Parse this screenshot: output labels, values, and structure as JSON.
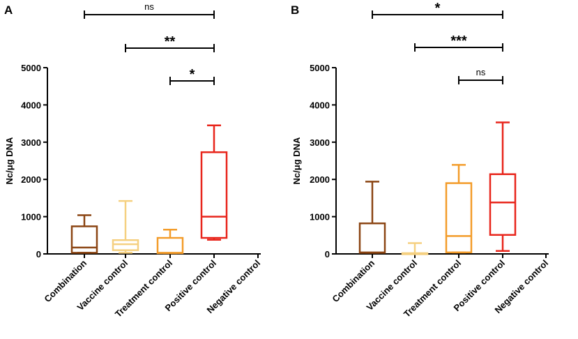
{
  "chart_data": [
    {
      "panel": "A",
      "type": "box",
      "ylabel": "Nc/μg DNA",
      "ylim": [
        0,
        5000
      ],
      "yticks": [
        0,
        1000,
        2000,
        3000,
        4000,
        5000
      ],
      "categories": [
        "Combination",
        "Vaccine control",
        "Treatment control",
        "Positive control",
        "Negative control"
      ],
      "colors": [
        "#8B4513",
        "#F5D080",
        "#F39C2A",
        "#E8251B",
        "#000000"
      ],
      "boxes": [
        {
          "min": 30,
          "q1": 30,
          "median": 170,
          "q3": 740,
          "max": 1040
        },
        {
          "min": 30,
          "q1": 100,
          "median": 260,
          "q3": 370,
          "max": 1420
        },
        {
          "min": 20,
          "q1": 20,
          "median": 30,
          "q3": 430,
          "max": 650
        },
        {
          "min": 380,
          "q1": 430,
          "median": 1000,
          "q3": 2730,
          "max": 3450
        },
        null
      ],
      "comparisons": [
        {
          "from": 0,
          "to": 3,
          "label": "ns"
        },
        {
          "from": 1,
          "to": 3,
          "label": "**"
        },
        {
          "from": 2,
          "to": 3,
          "label": "*"
        }
      ]
    },
    {
      "panel": "B",
      "type": "box",
      "ylabel": "Nc/μg DNA",
      "ylim": [
        0,
        5000
      ],
      "yticks": [
        0,
        1000,
        2000,
        3000,
        4000,
        5000
      ],
      "categories": [
        "Combination",
        "Vaccine control",
        "Treatment control",
        "Positive control",
        "Negative control"
      ],
      "colors": [
        "#8B4513",
        "#F5D080",
        "#F39C2A",
        "#E8251B",
        "#000000"
      ],
      "boxes": [
        {
          "min": 30,
          "q1": 30,
          "median": 40,
          "q3": 820,
          "max": 1940
        },
        {
          "min": 0,
          "q1": 0,
          "median": 10,
          "q3": 20,
          "max": 290
        },
        {
          "min": 40,
          "q1": 40,
          "median": 480,
          "q3": 1900,
          "max": 2390
        },
        {
          "min": 80,
          "q1": 510,
          "median": 1380,
          "q3": 2140,
          "max": 3530
        },
        null
      ],
      "comparisons": [
        {
          "from": 0,
          "to": 3,
          "label": "*"
        },
        {
          "from": 1,
          "to": 3,
          "label": "***"
        },
        {
          "from": 2,
          "to": 3,
          "label": "ns"
        }
      ]
    }
  ]
}
